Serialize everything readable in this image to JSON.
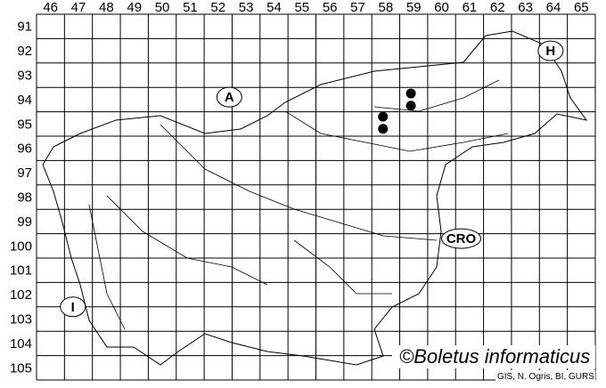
{
  "map": {
    "columns": [
      "46",
      "47",
      "48",
      "49",
      "50",
      "51",
      "52",
      "53",
      "54",
      "55",
      "56",
      "57",
      "58",
      "59",
      "60",
      "61",
      "62",
      "63",
      "64",
      "65"
    ],
    "rows": [
      "91",
      "92",
      "93",
      "94",
      "95",
      "96",
      "97",
      "98",
      "99",
      "100",
      "101",
      "102",
      "103",
      "104",
      "105"
    ],
    "regions": [
      {
        "label": "A",
        "col": 52.9,
        "row": 94.4
      },
      {
        "label": "H",
        "col": 64.4,
        "row": 92.5
      },
      {
        "label": "CRO",
        "col": 61.2,
        "row": 100.2
      },
      {
        "label": "I",
        "col": 47.3,
        "row": 103.0
      }
    ],
    "records": [
      {
        "col": 59.4,
        "row": 94.25
      },
      {
        "col": 59.4,
        "row": 94.75
      },
      {
        "col": 58.4,
        "row": 95.2
      },
      {
        "col": 58.4,
        "row": 95.7
      }
    ],
    "copyright": "©Boletus informaticus",
    "credit": "GIS, N. Ogris, BI, GURS",
    "colors": {
      "ink": "#000000",
      "background": "#ffffff"
    }
  }
}
